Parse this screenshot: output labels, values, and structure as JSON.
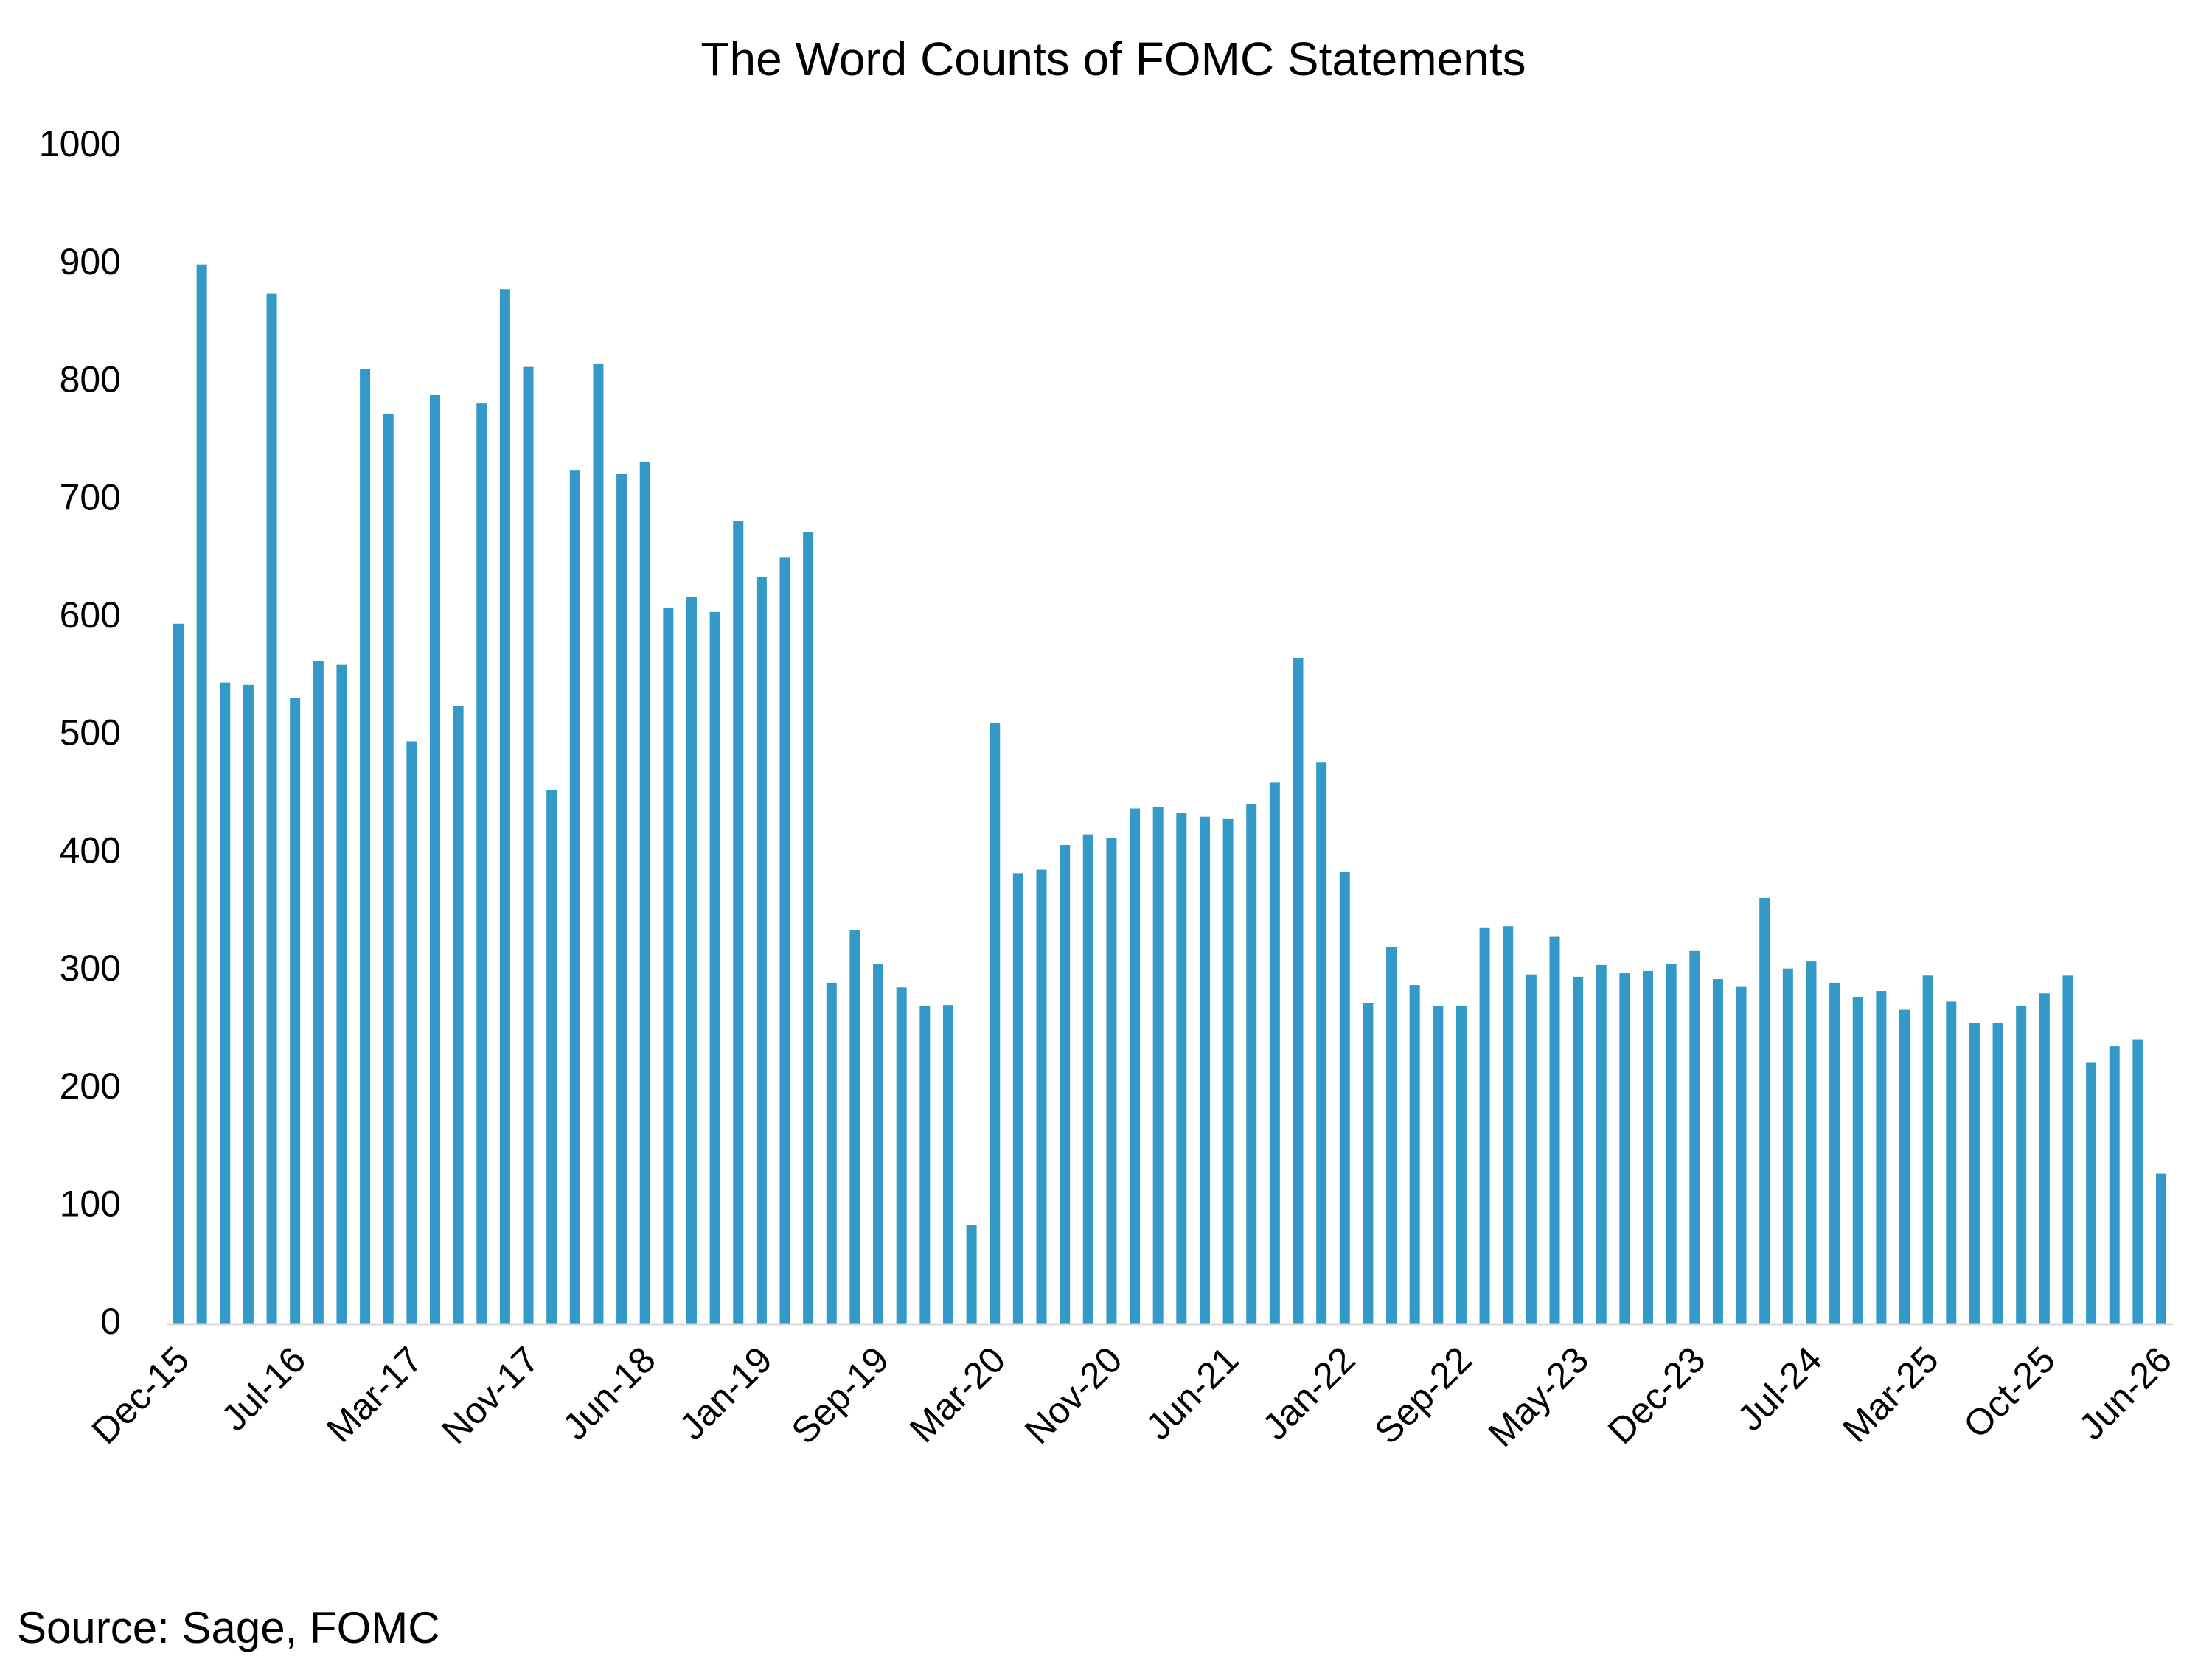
{
  "chart_data": {
    "type": "bar",
    "title": "The Word Counts of FOMC Statements",
    "source": "Source: Sage, FOMC",
    "categories": [
      "Dec-15",
      null,
      null,
      null,
      null,
      "Jul-16",
      null,
      null,
      null,
      null,
      "Mar-17",
      null,
      null,
      null,
      null,
      "Nov-17",
      null,
      null,
      null,
      null,
      "Jun-18",
      null,
      null,
      null,
      null,
      "Jan-19",
      null,
      null,
      null,
      null,
      "Sep-19",
      null,
      null,
      null,
      null,
      "Mar-20",
      null,
      null,
      null,
      null,
      "Nov-20",
      null,
      null,
      null,
      null,
      "Jun-21",
      null,
      null,
      null,
      null,
      "Jan-22",
      null,
      null,
      null,
      null,
      "Sep-22",
      null,
      null,
      null,
      null,
      "May-23",
      null,
      null,
      null,
      null,
      "Dec-23",
      null,
      null,
      null,
      null,
      "Jul-24",
      null,
      null,
      null,
      null,
      "Mar-25",
      null,
      null,
      null,
      null,
      "Oct-25",
      null,
      null,
      null,
      null,
      "Jun-26"
    ],
    "values": [
      595,
      900,
      545,
      543,
      875,
      532,
      563,
      560,
      811,
      773,
      495,
      789,
      525,
      782,
      879,
      813,
      454,
      725,
      816,
      722,
      732,
      608,
      618,
      605,
      682,
      635,
      651,
      673,
      290,
      335,
      306,
      286,
      270,
      271,
      84,
      511,
      383,
      386,
      407,
      416,
      413,
      438,
      439,
      434,
      431,
      429,
      442,
      460,
      566,
      477,
      384,
      273,
      320,
      288,
      270,
      270,
      337,
      338,
      297,
      329,
      295,
      305,
      298,
      300,
      306,
      317,
      293,
      287,
      362,
      302,
      308,
      290,
      278,
      283,
      267,
      296,
      274,
      256,
      256,
      270,
      281,
      296,
      222,
      236,
      242,
      128
    ],
    "color": "#3399c6",
    "ylim": [
      0,
      1000
    ],
    "yticks": [
      0,
      100,
      200,
      300,
      400,
      500,
      600,
      700,
      800,
      900,
      1000
    ],
    "grid": false
  }
}
